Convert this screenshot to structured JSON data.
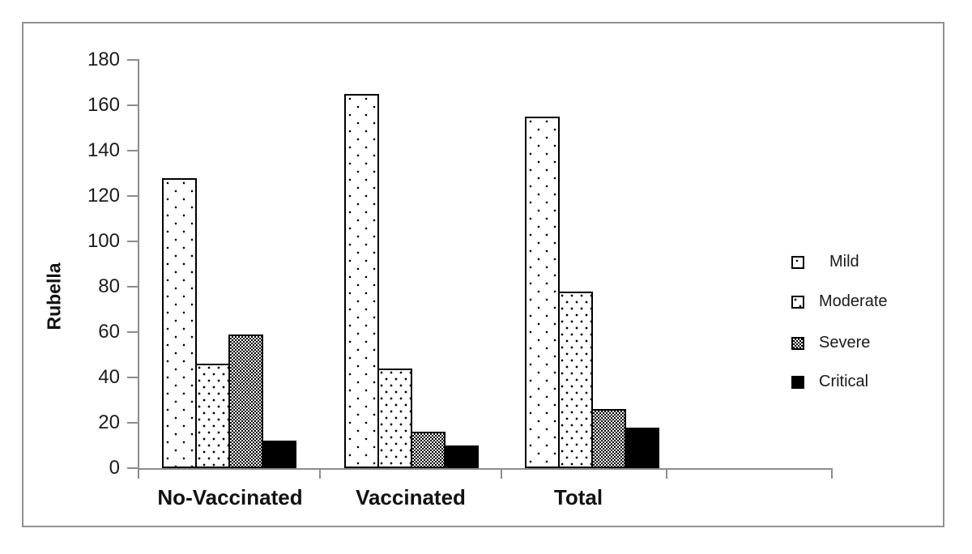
{
  "chart_data": {
    "type": "bar",
    "title": "",
    "ylabel": "Rubella",
    "xlabel": "",
    "categories": [
      "No-Vaccinated",
      "Vaccinated",
      "Total"
    ],
    "series": [
      {
        "name": "Mild",
        "pattern": "dots-sparse",
        "values": [
          128,
          165,
          155
        ]
      },
      {
        "name": "Moderate",
        "pattern": "dots-medium",
        "values": [
          46,
          44,
          78
        ]
      },
      {
        "name": "Severe",
        "pattern": "dots-dense",
        "values": [
          59,
          16,
          26
        ]
      },
      {
        "name": "Critical",
        "pattern": "solid",
        "values": [
          12,
          10,
          18
        ]
      }
    ],
    "ylim": [
      0,
      180
    ],
    "yticks": [
      180,
      160,
      140,
      120,
      100,
      80,
      60,
      40,
      20,
      0
    ],
    "grid": false,
    "legend_position": "right",
    "colors": {
      "bar_fill": "#ffffff",
      "bar_border": "#000000",
      "solid_fill": "#000000",
      "axis": "#8c8c8c",
      "frame_border": "#919191",
      "text": "#1a1a1a",
      "background": "#ffffff"
    }
  }
}
